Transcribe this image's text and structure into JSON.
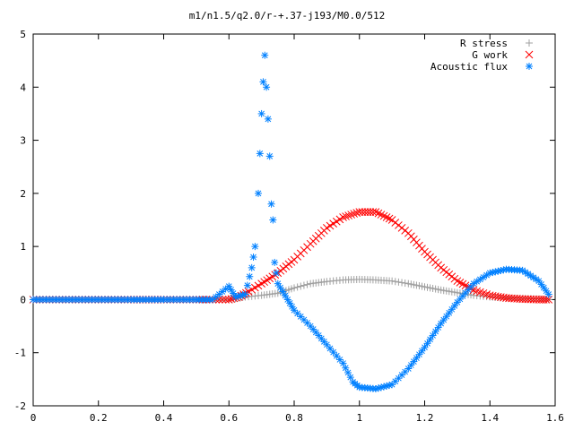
{
  "chart_data": {
    "type": "scatter",
    "title": "m1/n1.5/q2.0/r-+.37-j193/M0.0/512",
    "xlabel": "",
    "ylabel": "",
    "xlim": [
      0,
      1.6
    ],
    "ylim": [
      -2,
      5
    ],
    "xticks": [
      "0",
      "0.2",
      "0.4",
      "0.6",
      "0.8",
      "1",
      "1.2",
      "1.4",
      "1.6"
    ],
    "yticks": [
      "-2",
      "-1",
      "0",
      "1",
      "2",
      "3",
      "4",
      "5"
    ],
    "legend_position": "top-right",
    "series": [
      {
        "name": "R stress",
        "marker": "+",
        "color": "#a0a0a0",
        "points": [
          [
            0.0,
            0
          ],
          [
            0.1,
            0
          ],
          [
            0.2,
            0
          ],
          [
            0.3,
            0
          ],
          [
            0.4,
            0
          ],
          [
            0.5,
            0
          ],
          [
            0.6,
            0
          ],
          [
            0.62,
            0.02
          ],
          [
            0.65,
            0.05
          ],
          [
            0.7,
            0.08
          ],
          [
            0.75,
            0.12
          ],
          [
            0.8,
            0.22
          ],
          [
            0.85,
            0.3
          ],
          [
            0.9,
            0.34
          ],
          [
            0.95,
            0.37
          ],
          [
            1.0,
            0.38
          ],
          [
            1.05,
            0.37
          ],
          [
            1.1,
            0.35
          ],
          [
            1.15,
            0.3
          ],
          [
            1.2,
            0.24
          ],
          [
            1.25,
            0.18
          ],
          [
            1.3,
            0.13
          ],
          [
            1.35,
            0.08
          ],
          [
            1.4,
            0.05
          ],
          [
            1.45,
            0.03
          ],
          [
            1.5,
            0.02
          ],
          [
            1.55,
            0.01
          ],
          [
            1.58,
            0.0
          ]
        ]
      },
      {
        "name": "G work",
        "marker": "x",
        "color": "#ff0000",
        "points": [
          [
            0.0,
            0
          ],
          [
            0.1,
            0
          ],
          [
            0.2,
            0
          ],
          [
            0.3,
            0
          ],
          [
            0.4,
            0
          ],
          [
            0.5,
            0
          ],
          [
            0.6,
            0
          ],
          [
            0.63,
            0.05
          ],
          [
            0.66,
            0.15
          ],
          [
            0.7,
            0.3
          ],
          [
            0.75,
            0.5
          ],
          [
            0.8,
            0.75
          ],
          [
            0.85,
            1.05
          ],
          [
            0.9,
            1.35
          ],
          [
            0.95,
            1.55
          ],
          [
            1.0,
            1.65
          ],
          [
            1.05,
            1.65
          ],
          [
            1.1,
            1.5
          ],
          [
            1.15,
            1.25
          ],
          [
            1.2,
            0.9
          ],
          [
            1.25,
            0.6
          ],
          [
            1.3,
            0.35
          ],
          [
            1.35,
            0.18
          ],
          [
            1.4,
            0.08
          ],
          [
            1.45,
            0.03
          ],
          [
            1.5,
            0.01
          ],
          [
            1.55,
            0.0
          ],
          [
            1.58,
            0.0
          ]
        ]
      },
      {
        "name": "Acoustic flux",
        "marker": "*",
        "color": "#0080ff",
        "points": [
          [
            0.0,
            0
          ],
          [
            0.1,
            0
          ],
          [
            0.2,
            0
          ],
          [
            0.3,
            0
          ],
          [
            0.4,
            0
          ],
          [
            0.5,
            0
          ],
          [
            0.55,
            0
          ],
          [
            0.6,
            0.25
          ],
          [
            0.62,
            0.05
          ],
          [
            0.65,
            0.1
          ],
          [
            0.67,
            0.6
          ],
          [
            0.68,
            1.0
          ],
          [
            0.69,
            2.0
          ],
          [
            0.7,
            3.5
          ],
          [
            0.705,
            4.1
          ],
          [
            0.71,
            4.6
          ],
          [
            0.72,
            3.4
          ],
          [
            0.725,
            2.7
          ],
          [
            0.73,
            1.8
          ],
          [
            0.735,
            1.5
          ],
          [
            0.74,
            0.7
          ],
          [
            0.75,
            0.3
          ],
          [
            0.78,
            0.0
          ],
          [
            0.8,
            -0.2
          ],
          [
            0.85,
            -0.5
          ],
          [
            0.9,
            -0.85
          ],
          [
            0.95,
            -1.2
          ],
          [
            0.98,
            -1.55
          ],
          [
            1.0,
            -1.65
          ],
          [
            1.05,
            -1.68
          ],
          [
            1.1,
            -1.6
          ],
          [
            1.15,
            -1.3
          ],
          [
            1.2,
            -0.9
          ],
          [
            1.25,
            -0.45
          ],
          [
            1.3,
            -0.05
          ],
          [
            1.35,
            0.3
          ],
          [
            1.4,
            0.5
          ],
          [
            1.45,
            0.57
          ],
          [
            1.5,
            0.55
          ],
          [
            1.55,
            0.35
          ],
          [
            1.58,
            0.1
          ]
        ]
      }
    ]
  }
}
